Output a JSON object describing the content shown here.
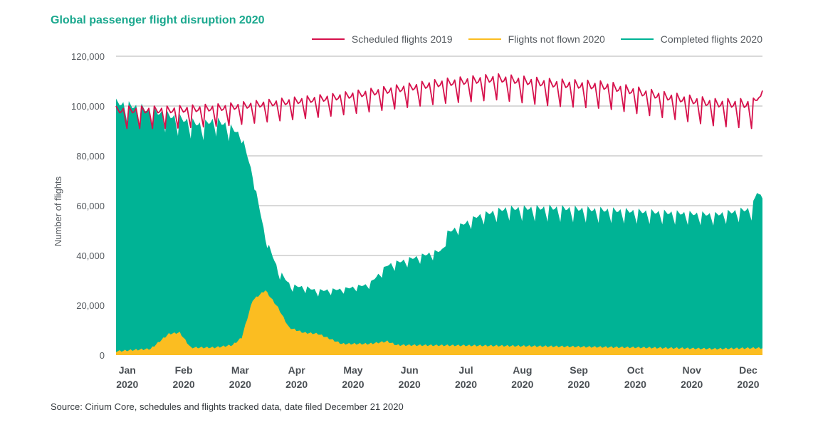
{
  "colors": {
    "title": "#1aa88e",
    "scheduled": "#d6114c",
    "not_flown": "#fbbd21",
    "completed": "#00b395",
    "grid": "#9a9a9a"
  },
  "source_note": "Source: Cirium Core, schedules and flights tracked data, date filed December 21 2020",
  "chart_data": {
    "type": "area",
    "title": "Global passenger flight disruption 2020",
    "xlabel": "",
    "ylabel": "Number of flights",
    "ylim": [
      0,
      120000
    ],
    "yticks": [
      0,
      20000,
      40000,
      60000,
      80000,
      100000,
      120000
    ],
    "ytick_labels": [
      "0",
      "20,000",
      "40,000",
      "60,000",
      "80,000",
      "100,000",
      "120,000"
    ],
    "xlim_day": [
      1,
      356
    ],
    "x_ticks": [
      {
        "day": 6,
        "month": "Jan",
        "year": "2020"
      },
      {
        "day": 37,
        "month": "Feb",
        "year": "2020"
      },
      {
        "day": 68,
        "month": "Mar",
        "year": "2020"
      },
      {
        "day": 99,
        "month": "Apr",
        "year": "2020"
      },
      {
        "day": 130,
        "month": "May",
        "year": "2020"
      },
      {
        "day": 161,
        "month": "Jun",
        "year": "2020"
      },
      {
        "day": 192,
        "month": "Jul",
        "year": "2020"
      },
      {
        "day": 223,
        "month": "Aug",
        "year": "2020"
      },
      {
        "day": 254,
        "month": "Sep",
        "year": "2020"
      },
      {
        "day": 285,
        "month": "Oct",
        "year": "2020"
      },
      {
        "day": 316,
        "month": "Nov",
        "year": "2020"
      },
      {
        "day": 347,
        "month": "Dec",
        "year": "2020"
      }
    ],
    "grid": true,
    "legend_position": "top-right",
    "series": [
      {
        "name": "Scheduled flights 2019",
        "style": "line",
        "weekly_peak": [
          [
            1,
            100000
          ],
          [
            30,
            100000
          ],
          [
            60,
            101000
          ],
          [
            90,
            103000
          ],
          [
            120,
            105000
          ],
          [
            150,
            108000
          ],
          [
            180,
            111000
          ],
          [
            210,
            113000
          ],
          [
            240,
            111000
          ],
          [
            270,
            110000
          ],
          [
            300,
            106000
          ],
          [
            330,
            103000
          ],
          [
            350,
            103000
          ],
          [
            356,
            104000
          ]
        ],
        "weekly_trough": [
          [
            1,
            91000
          ],
          [
            30,
            91000
          ],
          [
            60,
            92000
          ],
          [
            90,
            94000
          ],
          [
            120,
            96000
          ],
          [
            150,
            98500
          ],
          [
            180,
            101000
          ],
          [
            210,
            102500
          ],
          [
            240,
            100000
          ],
          [
            270,
            99000
          ],
          [
            300,
            95500
          ],
          [
            330,
            92000
          ],
          [
            350,
            91000
          ],
          [
            356,
            108000
          ]
        ]
      },
      {
        "name": "Flights not flown 2020",
        "style": "area",
        "values": [
          [
            1,
            1500
          ],
          [
            10,
            2000
          ],
          [
            20,
            2500
          ],
          [
            30,
            8500
          ],
          [
            36,
            9000
          ],
          [
            42,
            3000
          ],
          [
            55,
            3000
          ],
          [
            65,
            4000
          ],
          [
            70,
            7000
          ],
          [
            76,
            22000
          ],
          [
            83,
            26000
          ],
          [
            90,
            19000
          ],
          [
            96,
            11000
          ],
          [
            104,
            9000
          ],
          [
            112,
            8500
          ],
          [
            125,
            4500
          ],
          [
            140,
            4500
          ],
          [
            150,
            5500
          ],
          [
            155,
            4000
          ],
          [
            200,
            3800
          ],
          [
            240,
            3500
          ],
          [
            290,
            3000
          ],
          [
            330,
            2500
          ],
          [
            350,
            2800
          ],
          [
            356,
            2800
          ]
        ]
      },
      {
        "name": "Completed flights 2020",
        "style": "area",
        "weekly_peak": [
          [
            1,
            103000
          ],
          [
            15,
            101000
          ],
          [
            25,
            99000
          ],
          [
            35,
            97000
          ],
          [
            48,
            94000
          ],
          [
            55,
            96000
          ],
          [
            62,
            94000
          ],
          [
            70,
            89000
          ],
          [
            76,
            73000
          ],
          [
            83,
            48000
          ],
          [
            90,
            35000
          ],
          [
            97,
            28500
          ],
          [
            104,
            28000
          ],
          [
            112,
            26500
          ],
          [
            125,
            27000
          ],
          [
            140,
            29000
          ],
          [
            150,
            37000
          ],
          [
            165,
            40000
          ],
          [
            180,
            43000
          ],
          [
            183,
            50000
          ],
          [
            200,
            57000
          ],
          [
            215,
            60000
          ],
          [
            240,
            60500
          ],
          [
            270,
            59500
          ],
          [
            300,
            58500
          ],
          [
            330,
            57500
          ],
          [
            350,
            60000
          ],
          [
            353,
            66000
          ],
          [
            356,
            64000
          ]
        ],
        "weekly_trough": [
          [
            1,
            95000
          ],
          [
            15,
            92000
          ],
          [
            25,
            90000
          ],
          [
            35,
            88000
          ],
          [
            48,
            86000
          ],
          [
            55,
            88000
          ],
          [
            62,
            86000
          ],
          [
            70,
            85000
          ],
          [
            76,
            70000
          ],
          [
            83,
            45000
          ],
          [
            90,
            31000
          ],
          [
            97,
            25500
          ],
          [
            104,
            25000
          ],
          [
            112,
            23500
          ],
          [
            125,
            24500
          ],
          [
            140,
            26500
          ],
          [
            150,
            33000
          ],
          [
            165,
            36000
          ],
          [
            180,
            39000
          ],
          [
            183,
            46000
          ],
          [
            200,
            52000
          ],
          [
            215,
            54000
          ],
          [
            240,
            53500
          ],
          [
            270,
            53000
          ],
          [
            300,
            52500
          ],
          [
            330,
            52000
          ],
          [
            350,
            54000
          ],
          [
            353,
            63000
          ],
          [
            356,
            62000
          ]
        ]
      }
    ]
  }
}
